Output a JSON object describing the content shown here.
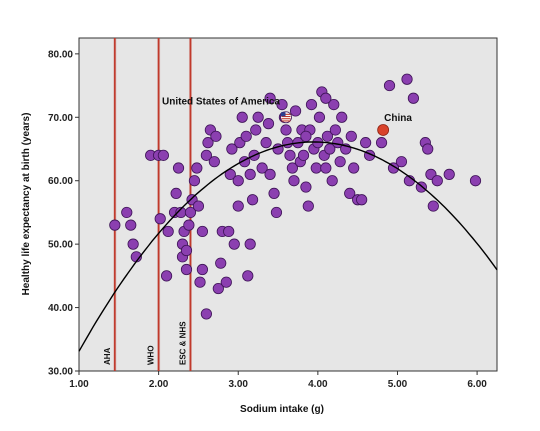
{
  "chart_data": {
    "type": "scatter",
    "xlabel": "Sodium intake (g)",
    "ylabel": "Healthy life expectancy at birth (years)",
    "xlim": [
      1.0,
      6.25
    ],
    "ylim": [
      30.0,
      82.5
    ],
    "x_ticks": [
      "1.00",
      "2.00",
      "3.00",
      "4.00",
      "5.00",
      "6.00"
    ],
    "y_ticks": [
      "30.00",
      "40.00",
      "50.00",
      "60.00",
      "70.00",
      "80.00"
    ],
    "grid": false,
    "colors": {
      "plot_background": "#e6e6e6",
      "points": "#8b3fb0",
      "points_edge": "#3e1457",
      "guideline": "#c0392b",
      "highlight": "#d9432b",
      "fit": "#000000"
    },
    "guidelines": [
      {
        "label": "AHA",
        "x": 1.45
      },
      {
        "label": "WHO",
        "x": 2.0
      },
      {
        "label": "ESC & NHS",
        "x": 2.4
      }
    ],
    "fit_curve": {
      "type": "quadratic",
      "a": -3.8,
      "b": 30.0,
      "c": 6.9
    },
    "annotations": [
      {
        "label": "United States of America",
        "x": 3.6,
        "y": 70.0,
        "marker": "flag-icon"
      },
      {
        "label": "China",
        "x": 4.82,
        "y": 68.0,
        "marker": "highlight-point"
      }
    ],
    "points": [
      [
        1.45,
        53
      ],
      [
        1.6,
        55
      ],
      [
        1.65,
        53
      ],
      [
        1.68,
        50
      ],
      [
        1.72,
        48
      ],
      [
        1.9,
        64
      ],
      [
        2.0,
        64
      ],
      [
        2.02,
        54
      ],
      [
        2.06,
        64
      ],
      [
        2.1,
        45
      ],
      [
        2.12,
        52
      ],
      [
        2.2,
        55
      ],
      [
        2.22,
        58
      ],
      [
        2.25,
        62
      ],
      [
        2.28,
        55
      ],
      [
        2.3,
        50
      ],
      [
        2.3,
        48
      ],
      [
        2.32,
        52
      ],
      [
        2.35,
        49
      ],
      [
        2.35,
        46
      ],
      [
        2.4,
        55
      ],
      [
        2.38,
        53
      ],
      [
        2.42,
        57
      ],
      [
        2.45,
        60
      ],
      [
        2.48,
        62
      ],
      [
        2.5,
        56
      ],
      [
        2.52,
        44
      ],
      [
        2.55,
        46
      ],
      [
        2.6,
        39
      ],
      [
        2.6,
        64
      ],
      [
        2.62,
        66
      ],
      [
        2.65,
        68
      ],
      [
        2.7,
        63
      ],
      [
        2.72,
        67
      ],
      [
        2.75,
        43
      ],
      [
        2.78,
        47
      ],
      [
        2.8,
        52
      ],
      [
        2.85,
        44
      ],
      [
        2.9,
        61
      ],
      [
        2.92,
        65
      ],
      [
        2.95,
        50
      ],
      [
        3.0,
        56
      ],
      [
        3.0,
        60
      ],
      [
        3.02,
        66
      ],
      [
        3.05,
        70
      ],
      [
        3.08,
        63
      ],
      [
        3.1,
        67
      ],
      [
        3.12,
        45
      ],
      [
        3.15,
        61
      ],
      [
        3.18,
        57
      ],
      [
        3.2,
        64
      ],
      [
        3.22,
        68
      ],
      [
        3.25,
        70
      ],
      [
        3.3,
        62
      ],
      [
        3.35,
        66
      ],
      [
        3.38,
        69
      ],
      [
        3.4,
        73
      ],
      [
        3.45,
        58
      ],
      [
        3.48,
        55
      ],
      [
        3.5,
        65
      ],
      [
        3.55,
        72
      ],
      [
        3.58,
        70
      ],
      [
        3.6,
        68
      ],
      [
        3.62,
        66
      ],
      [
        3.65,
        64
      ],
      [
        3.68,
        62
      ],
      [
        3.7,
        60
      ],
      [
        3.72,
        71
      ],
      [
        3.75,
        66
      ],
      [
        3.78,
        63
      ],
      [
        3.8,
        68
      ],
      [
        3.82,
        64
      ],
      [
        3.85,
        59
      ],
      [
        3.88,
        56
      ],
      [
        3.9,
        68
      ],
      [
        3.92,
        72
      ],
      [
        3.95,
        65
      ],
      [
        3.98,
        62
      ],
      [
        4.0,
        66
      ],
      [
        4.02,
        70
      ],
      [
        4.05,
        74
      ],
      [
        4.08,
        64
      ],
      [
        4.1,
        62
      ],
      [
        4.12,
        67
      ],
      [
        4.15,
        65
      ],
      [
        4.18,
        60
      ],
      [
        4.2,
        72
      ],
      [
        4.22,
        68
      ],
      [
        4.25,
        66
      ],
      [
        4.28,
        63
      ],
      [
        4.3,
        70
      ],
      [
        4.35,
        65
      ],
      [
        4.4,
        58
      ],
      [
        4.42,
        67
      ],
      [
        4.45,
        62
      ],
      [
        4.5,
        57
      ],
      [
        4.55,
        57
      ],
      [
        4.6,
        66
      ],
      [
        4.65,
        64
      ],
      [
        4.8,
        66
      ],
      [
        4.9,
        75
      ],
      [
        4.95,
        62
      ],
      [
        5.05,
        63
      ],
      [
        5.12,
        76
      ],
      [
        5.15,
        60
      ],
      [
        5.2,
        73
      ],
      [
        5.3,
        59
      ],
      [
        5.35,
        66
      ],
      [
        5.38,
        65
      ],
      [
        5.42,
        61
      ],
      [
        5.45,
        56
      ],
      [
        5.5,
        60
      ],
      [
        5.65,
        61
      ],
      [
        5.98,
        60
      ],
      [
        4.1,
        73
      ],
      [
        3.4,
        61
      ],
      [
        2.88,
        52
      ],
      [
        3.15,
        50
      ],
      [
        2.55,
        52
      ],
      [
        3.85,
        67
      ]
    ]
  }
}
